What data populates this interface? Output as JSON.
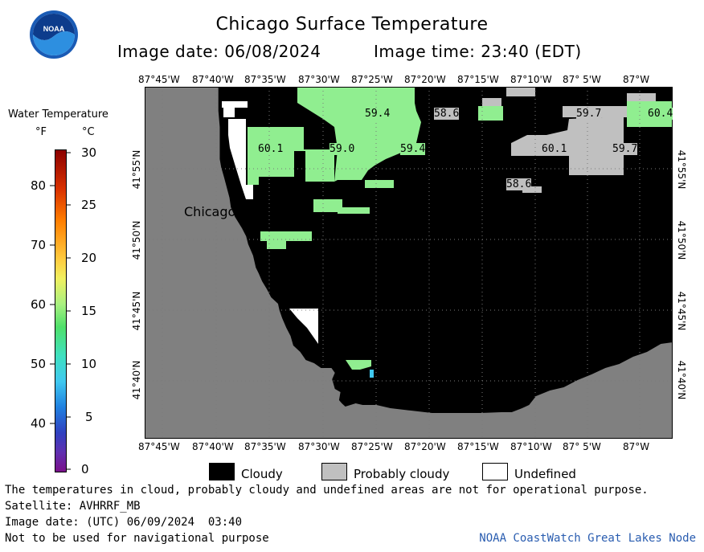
{
  "header": {
    "title": "Chicago Surface Temperature",
    "image_date": "Image date: 06/08/2024",
    "image_time": "Image time: 23:40 (EDT)"
  },
  "colorbar": {
    "title": "Water Temperature",
    "unit_f": "°F",
    "unit_c": "°C",
    "f_ticks": [
      "80",
      "70",
      "60",
      "50",
      "40"
    ],
    "c_ticks": [
      "30",
      "25",
      "20",
      "15",
      "10",
      "5",
      "0"
    ]
  },
  "map": {
    "lon_labels": [
      "87°45'W",
      "87°40'W",
      "87°35'W",
      "87°30'W",
      "87°25'W",
      "87°20'W",
      "87°15'W",
      "87°10'W",
      "87° 5'W",
      "87°W"
    ],
    "lat_labels": [
      "41°55'N",
      "41°50'N",
      "41°45'N",
      "41°40'N"
    ],
    "city_label": "Chicago",
    "temperatures": [
      "59.4",
      "58.6",
      "59.7",
      "60.4",
      "60.1",
      "59.0",
      "59.4",
      "60.1",
      "59.7",
      "58.6"
    ],
    "land_color": "#808080",
    "cloud_color": "#000000",
    "warm_water_color": "#90ee90"
  },
  "legend": {
    "cloudy": "Cloudy",
    "probably_cloudy": "Probably cloudy",
    "undefined": "Undefined"
  },
  "footer": {
    "disclaimer": "The temperatures in cloud, probably cloudy and undefined areas are not for operational purpose.",
    "satellite": "Satellite: AVHRRF_MB",
    "utc_date": "Image date: (UTC) 06/09/2024  03:40",
    "nav_warning": "Not to be used for navigational purpose",
    "credit": "NOAA CoastWatch Great Lakes Node"
  }
}
